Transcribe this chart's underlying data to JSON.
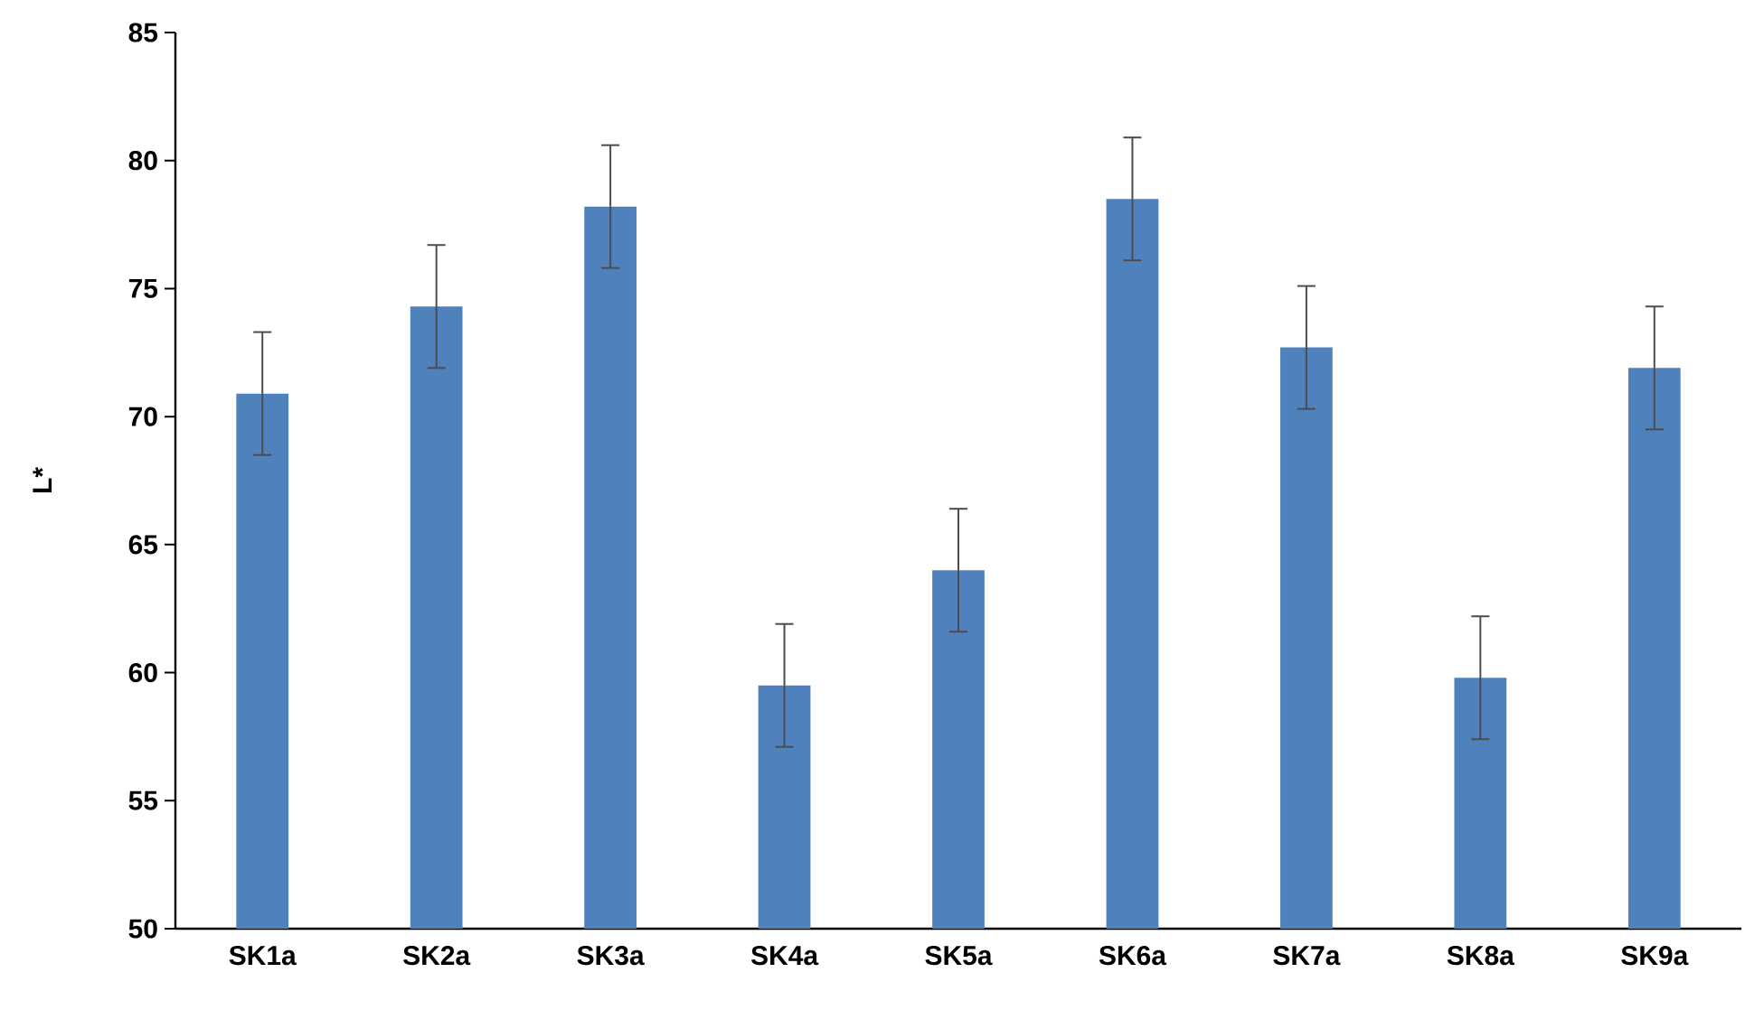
{
  "chart_data": {
    "type": "bar",
    "ylabel": "L*",
    "categories": [
      "SK1a",
      "SK2a",
      "SK3a",
      "SK4a",
      "SK5a",
      "SK6a",
      "SK7a",
      "SK8a",
      "SK9a"
    ],
    "values": [
      70.9,
      74.3,
      78.2,
      59.5,
      64.0,
      78.5,
      72.7,
      59.8,
      71.9
    ],
    "errors": [
      2.4,
      2.4,
      2.4,
      2.4,
      2.4,
      2.4,
      2.4,
      2.4,
      2.4
    ],
    "color": "#4f81bd",
    "ylim": [
      50,
      85
    ],
    "yticks": [
      50,
      55,
      60,
      65,
      70,
      75,
      80,
      85
    ]
  }
}
